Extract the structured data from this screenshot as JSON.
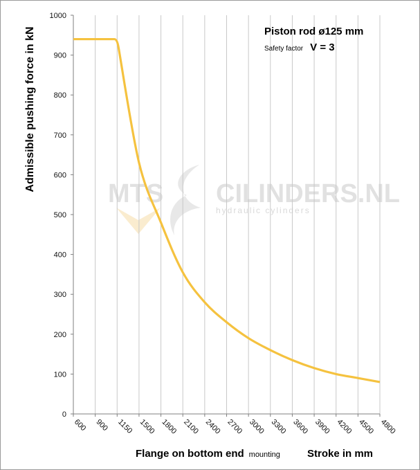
{
  "chart_data": {
    "type": "line",
    "title": "",
    "xlabel": "Flange on bottom end",
    "xlabel_small": "mounting",
    "xlabel_right": "Stroke in mm",
    "ylabel": "Admissible pushing force in kN",
    "ylim": [
      0,
      1000
    ],
    "yticks": [
      "0",
      "100",
      "200",
      "300",
      "400",
      "500",
      "600",
      "700",
      "800",
      "900",
      "1000"
    ],
    "categories": [
      "600",
      "900",
      "1150",
      "1500",
      "1800",
      "2100",
      "2400",
      "2700",
      "3000",
      "3300",
      "3600",
      "3900",
      "4200",
      "4500",
      "4800"
    ],
    "series": [
      {
        "values": [
          940,
          940,
          940,
          630,
          480,
          355,
          280,
          230,
          190,
          160,
          135,
          115,
          100,
          90,
          80
        ],
        "color": "#f5c23f"
      }
    ],
    "grid": "vertical lines at each category",
    "annotations": {
      "line1": "Piston rod ø125 mm",
      "line2_small": "Safety factor",
      "line2_value": "V = 3"
    }
  },
  "watermark": {
    "left_text": "MTS",
    "right_text": "CILINDERS.NL",
    "sub_text": "hydraulic cylinders"
  },
  "colors": {
    "curve": "#f5c23f",
    "grid": "#c8c8c8",
    "axis": "#7f7f7f"
  }
}
